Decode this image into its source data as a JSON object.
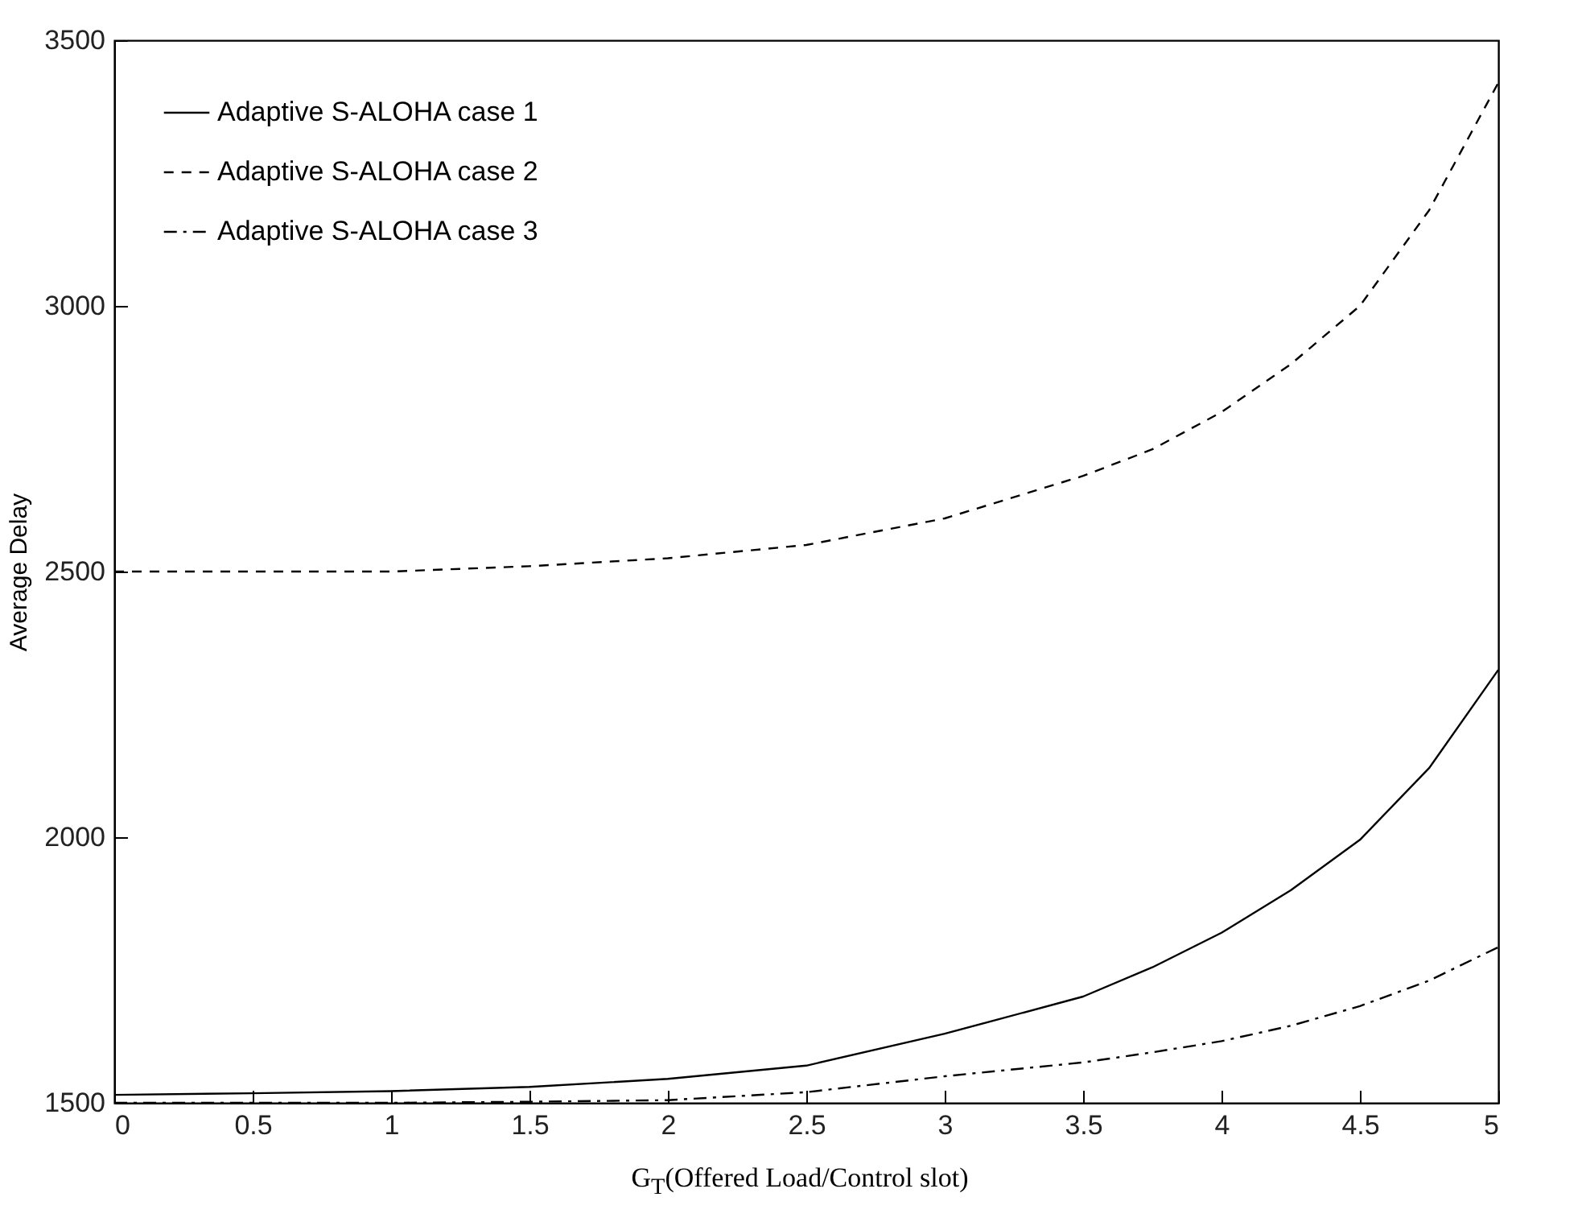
{
  "chart_data": {
    "type": "line",
    "xlabel": "G$_{T}$(Offered Load/Control slot)",
    "ylabel": "Average Delay",
    "x": [
      0,
      0.5,
      1,
      1.5,
      2,
      2.5,
      3,
      3.5,
      3.75,
      4,
      4.25,
      4.5,
      4.75,
      5
    ],
    "series": [
      {
        "name": "Adaptive S-ALOHA case 1",
        "color": "#000000",
        "line_style": "solid",
        "values": [
          1515,
          1518,
          1522,
          1530,
          1545,
          1570,
          1630,
          1700,
          1755,
          1820,
          1900,
          1995,
          2130,
          2315
        ]
      },
      {
        "name": "Adaptive S-ALOHA case 2",
        "color": "#000000",
        "line_style": "dashed",
        "values": [
          2500,
          2500,
          2500,
          2510,
          2525,
          2550,
          2600,
          2680,
          2730,
          2800,
          2890,
          3000,
          3180,
          3420
        ]
      },
      {
        "name": "Adaptive S-ALOHA case 3",
        "color": "#000000",
        "line_style": "dotted",
        "values": [
          1500,
          1500,
          1500,
          1502,
          1505,
          1520,
          1550,
          1576,
          1595,
          1616,
          1645,
          1682,
          1730,
          1793
        ]
      }
    ],
    "xlim": [
      0,
      5
    ],
    "xticks": [
      0,
      0.5,
      1,
      1.5,
      2,
      2.5,
      3,
      3.5,
      4,
      4.5,
      5
    ],
    "ylim": [
      1500,
      3500
    ],
    "yticks": [
      1500,
      2000,
      2500,
      3000,
      3500
    ],
    "grid": false,
    "legend": "top left",
    "marker": "none"
  }
}
